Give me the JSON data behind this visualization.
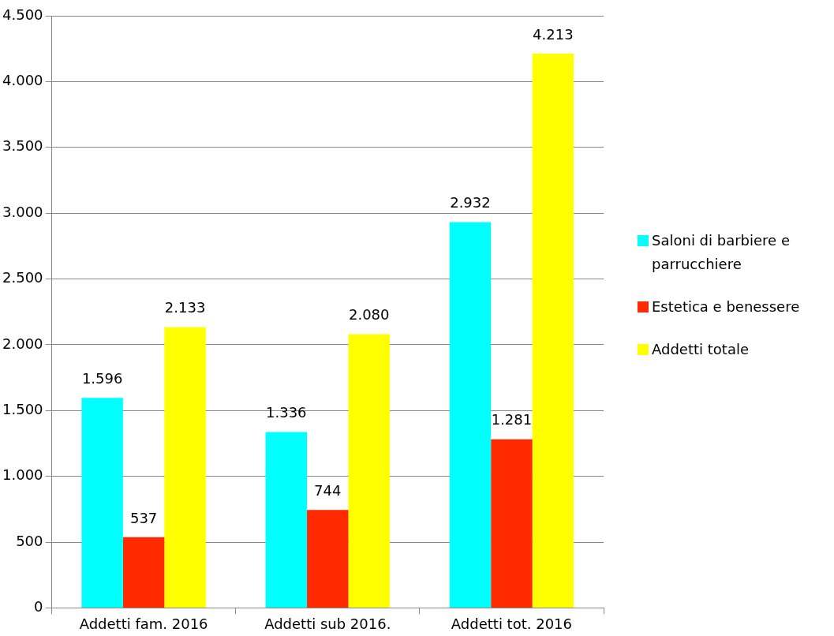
{
  "chart_data": {
    "type": "bar",
    "categories": [
      "Addetti fam. 2016",
      "Addetti sub 2016.",
      "Addetti tot. 2016"
    ],
    "series": [
      {
        "name": "Saloni di barbiere e parrucchiere",
        "color": "#00ffff",
        "values": [
          1596,
          1336,
          2932
        ],
        "value_labels": [
          "1.596",
          "1.336",
          "2.932"
        ]
      },
      {
        "name": "Estetica e benessere",
        "color": "#ff2a00",
        "values": [
          537,
          744,
          1281
        ],
        "value_labels": [
          "537",
          "744",
          "1.281"
        ]
      },
      {
        "name": "Addetti totale",
        "color": "#ffff00",
        "values": [
          2133,
          2080,
          4213
        ],
        "value_labels": [
          "2.133",
          "2.080",
          "4.213"
        ]
      }
    ],
    "ylim": [
      0,
      4500
    ],
    "yticks": [
      0,
      {
        "value": 500,
        "label": "500"
      },
      {
        "value": 1000,
        "label": "1.000"
      },
      {
        "value": 1500,
        "label": "1.500"
      },
      {
        "value": 2000,
        "label": "2.000"
      },
      {
        "value": 2500,
        "label": "2.500"
      },
      {
        "value": 3000,
        "label": "3.000"
      },
      {
        "value": 3500,
        "label": "3.500"
      },
      {
        "value": 4000,
        "label": "4.000"
      },
      {
        "value": 4500,
        "label": "4.500"
      }
    ],
    "grid": "y",
    "legend": "right"
  }
}
